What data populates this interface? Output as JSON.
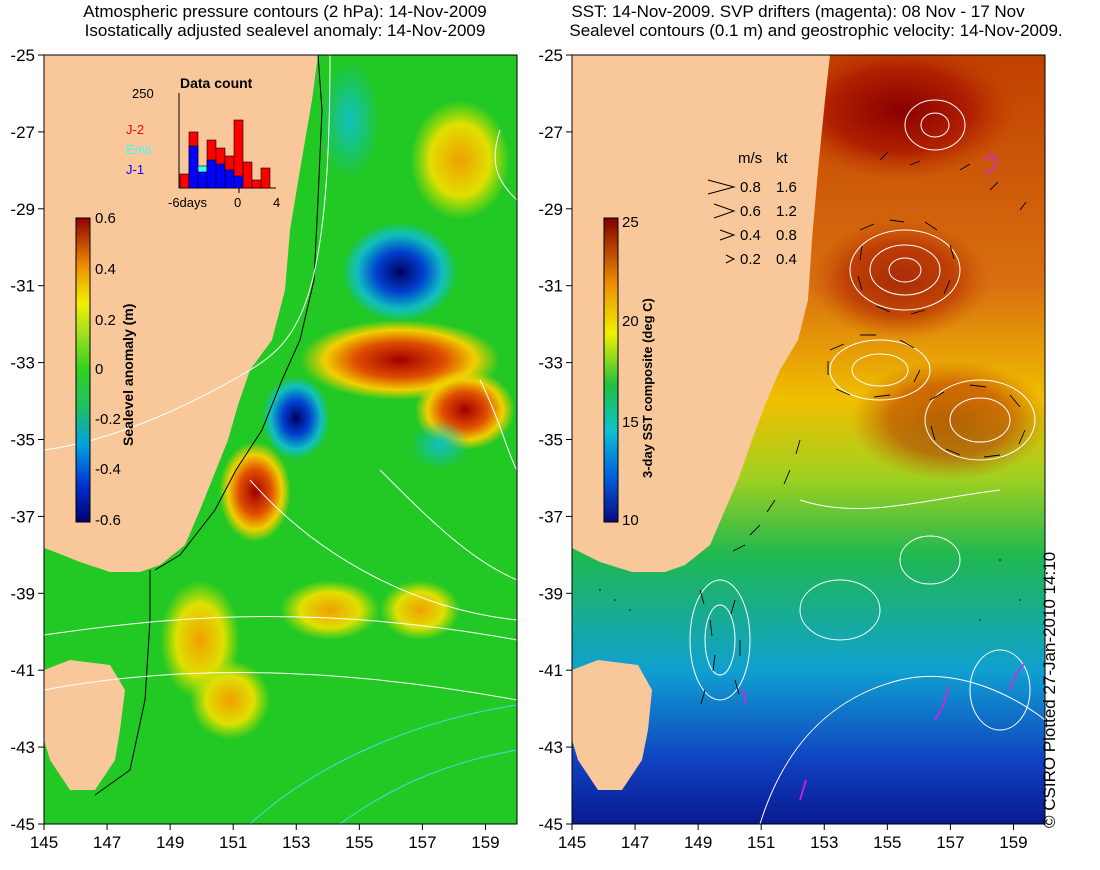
{
  "left_panel": {
    "title_line1": "Atmospheric pressure contours (2 hPa): 14-Nov-2009",
    "title_line2": "Isostatically adjusted sealevel anomaly: 14-Nov-2009",
    "colorbar": {
      "label": "Sealevel anomaly (m)",
      "ticks": [
        "0.6",
        "0.4",
        "0.2",
        "0",
        "-0.2",
        "-0.4",
        "-0.6"
      ],
      "range": [
        -0.6,
        0.6
      ]
    },
    "inset": {
      "title": "Data count",
      "ymax_label": "250",
      "x_ticks": [
        "-6days",
        "0",
        "4"
      ],
      "legend": [
        {
          "label": "J-2",
          "color": "#ff0000"
        },
        {
          "label": "Envi",
          "color": "#33ffff"
        },
        {
          "label": "J-1",
          "color": "#0000ff"
        }
      ]
    }
  },
  "right_panel": {
    "title_line1": "SST: 14-Nov-2009. SVP drifters (magenta): 08 Nov - 17 Nov",
    "title_line2": "Sealevel contours (0.1 m) and geostrophic velocity: 14-Nov-2009.",
    "colorbar": {
      "label": "3-day SST composite (deg C)",
      "ticks": [
        "25",
        "20",
        "15",
        "10"
      ],
      "range": [
        10,
        25
      ]
    },
    "velocity_legend": {
      "header_ms": "m/s",
      "header_kt": "kt",
      "rows": [
        {
          "ms": "0.8",
          "kt": "1.6"
        },
        {
          "ms": "0.6",
          "kt": "1.2"
        },
        {
          "ms": "0.4",
          "kt": "0.8"
        },
        {
          "ms": "0.2",
          "kt": "0.4"
        }
      ]
    }
  },
  "axes": {
    "lat_labels": [
      "-25",
      "-27",
      "-29",
      "-31",
      "-33",
      "-35",
      "-37",
      "-39",
      "-41",
      "-43",
      "-45"
    ],
    "lon_labels": [
      "145",
      "147",
      "149",
      "151",
      "153",
      "155",
      "157",
      "159"
    ]
  },
  "credit": "© CSIRO Plotted 27-Jan-2010 14:10",
  "colors": {
    "land": "#f9c89a",
    "ocean_green": "#1ec822",
    "contour": "#ffffff"
  }
}
